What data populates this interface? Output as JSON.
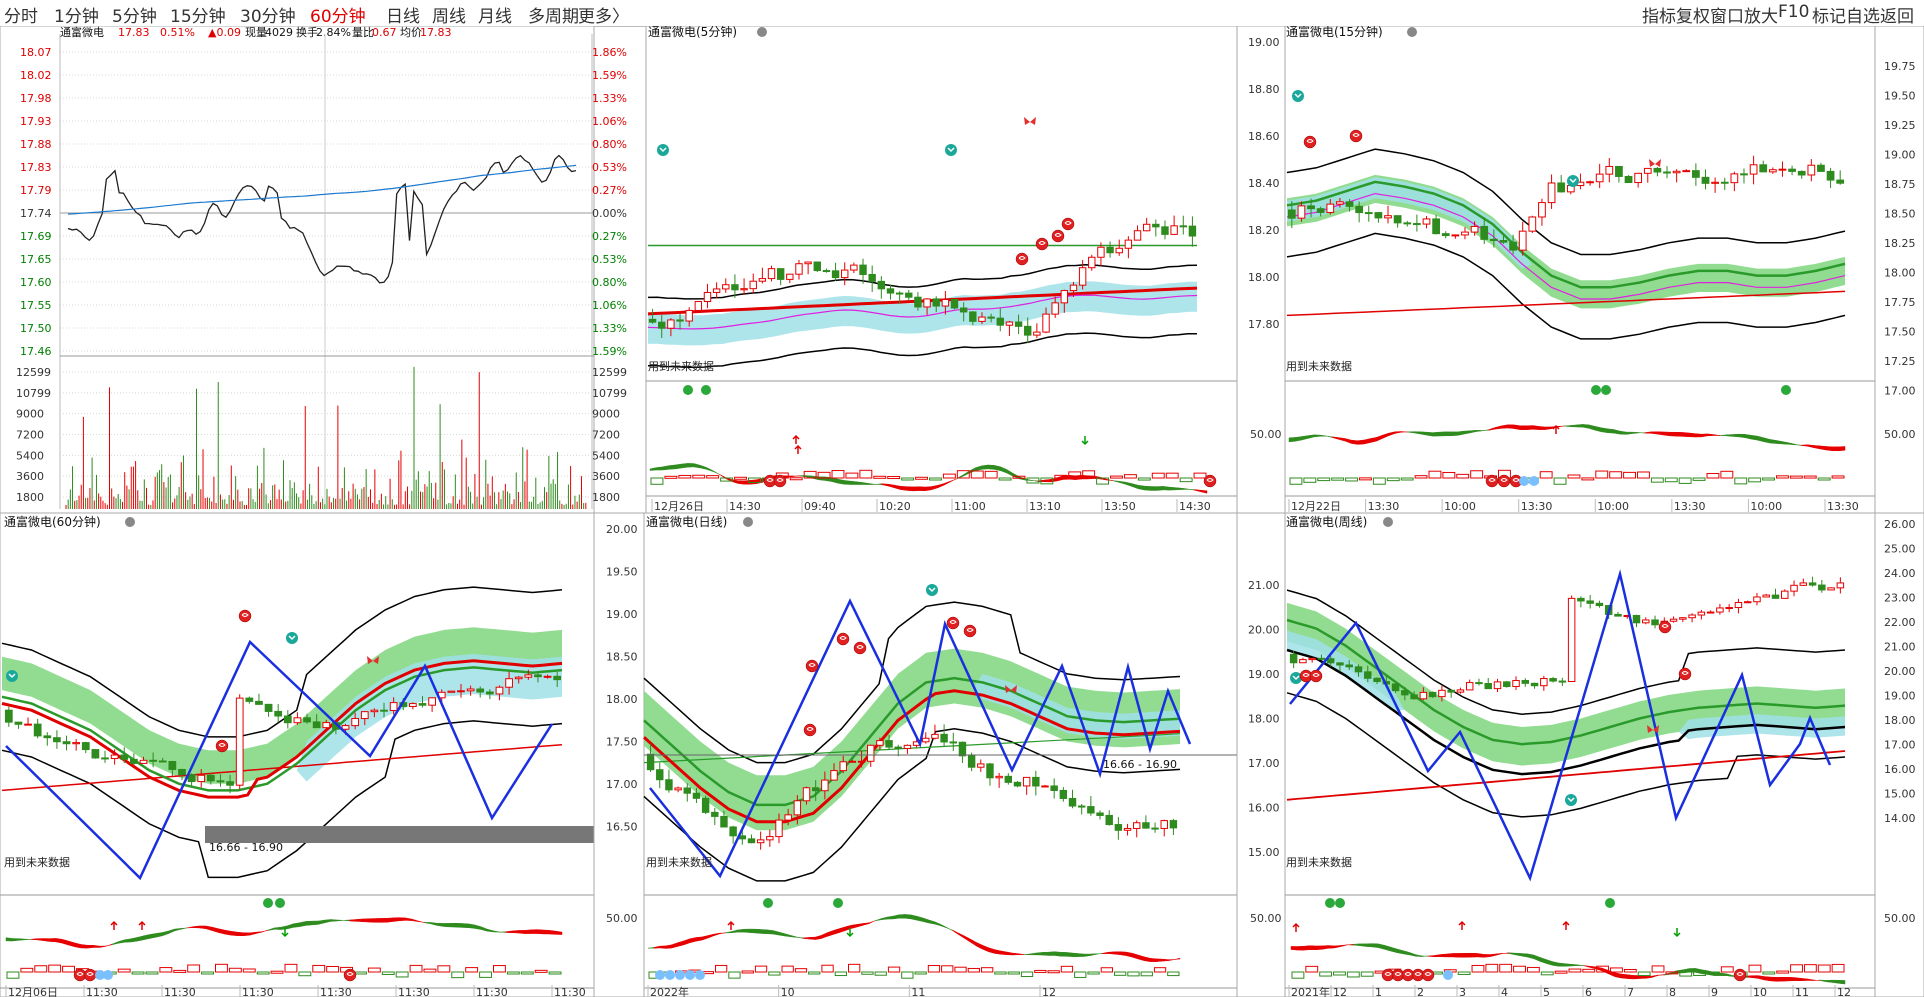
{
  "toolbar": {
    "periods": [
      "分时",
      "1分钟",
      "5分钟",
      "15分钟",
      "30分钟",
      "60分钟",
      "日线",
      "周线",
      "月线",
      "多周期",
      "更多〉"
    ],
    "active_period": "60分钟",
    "right_buttons": [
      "指标",
      "复权",
      "窗口",
      "放大",
      "F10",
      "标记",
      "自选",
      "返回"
    ]
  },
  "intraday": {
    "stock_name": "通富微电",
    "price": "17.83",
    "change_pct": "0.51%",
    "change": "▲0.09",
    "volume_label": "现量",
    "volume": "4029",
    "turnover_label": "换手",
    "turnover": "2.84%",
    "volume_ratio_label": "量比",
    "volume_ratio": "0.67",
    "avg_label": "均价",
    "avg_price": "17.83",
    "price_ticks": [
      "18.07",
      "18.02",
      "17.98",
      "17.93",
      "17.88",
      "17.83",
      "17.79",
      "17.74",
      "17.69",
      "17.65",
      "17.60",
      "17.55",
      "17.50",
      "17.46"
    ],
    "pct_ticks": [
      "1.86%",
      "1.59%",
      "1.33%",
      "1.06%",
      "0.80%",
      "0.53%",
      "0.27%",
      "0.00%",
      "0.27%",
      "0.53%",
      "0.80%",
      "1.06%",
      "1.33%",
      "1.59%"
    ],
    "vol_ticks": [
      "12599",
      "10799",
      "9000",
      "7200",
      "5400",
      "3600",
      "1800"
    ]
  },
  "panels": {
    "p5m": {
      "title": "通富微电(5分钟)",
      "future_note": "用到未来数据",
      "x_labels": [
        "12月26日",
        "14:30",
        "09:40",
        "10:20",
        "11:00",
        "13:10",
        "13:50",
        "14:30"
      ]
    },
    "p15m": {
      "title": "通富微电(15分钟)",
      "future_note": "用到未来数据",
      "y_labels": [
        "19.00",
        "18.80",
        "18.60",
        "18.40",
        "18.20",
        "18.00",
        "17.80"
      ],
      "right_labels": [
        "19.75",
        "19.50",
        "19.25",
        "19.00",
        "18.75",
        "18.50",
        "18.25",
        "18.00",
        "17.75",
        "17.50",
        "17.25",
        "17.00"
      ],
      "osc_label": "50.00",
      "x_labels": [
        "12月22日",
        "13:30",
        "10:00",
        "13:30",
        "10:00",
        "13:30",
        "10:00",
        "13:30"
      ]
    },
    "p60m": {
      "title": "通富微电(60分钟)",
      "future_note": "用到未来数据",
      "range_label": "16.66 - 16.90",
      "x_labels": [
        "12月06日",
        "11:30",
        "11:30",
        "11:30",
        "11:30",
        "11:30",
        "11:30",
        "11:30"
      ]
    },
    "pday": {
      "title": "通富微电(日线)",
      "future_note": "用到未来数据",
      "range_label": "16.66 - 16.90",
      "y_labels": [
        "20.00",
        "19.50",
        "19.00",
        "18.50",
        "18.00",
        "17.50",
        "17.00",
        "16.50"
      ],
      "osc_label": "50.00",
      "x_labels": [
        "2022年",
        "10",
        "11",
        "12"
      ]
    },
    "pweek": {
      "title": "通富微电(周线)",
      "future_note": "用到未来数据",
      "y_labels": [
        "21.00",
        "20.00",
        "19.00",
        "18.00",
        "17.00",
        "16.00",
        "15.00"
      ],
      "right_labels": [
        "26.00",
        "25.00",
        "24.00",
        "23.00",
        "22.00",
        "21.00",
        "20.00",
        "19.00",
        "18.00",
        "17.00",
        "16.00",
        "15.00",
        "14.00"
      ],
      "osc_label": "50.00",
      "x_labels": [
        "2021年",
        "12",
        "1",
        "2",
        "3",
        "4",
        "5",
        "6",
        "7",
        "8",
        "9",
        "10",
        "11",
        "12"
      ]
    }
  },
  "colors": {
    "up": "#e60000",
    "down": "#2e8b1e",
    "price_line": "#222222",
    "avg_line": "#1e7ad0",
    "band": "#7fd67f",
    "cyan_band": "#9fe0e8",
    "zigzag": "#1a2fe0",
    "magenta": "#e020e0",
    "grid": "#d8d8d8",
    "axis_text_red": "#e00000",
    "axis_text_green": "#008000"
  }
}
